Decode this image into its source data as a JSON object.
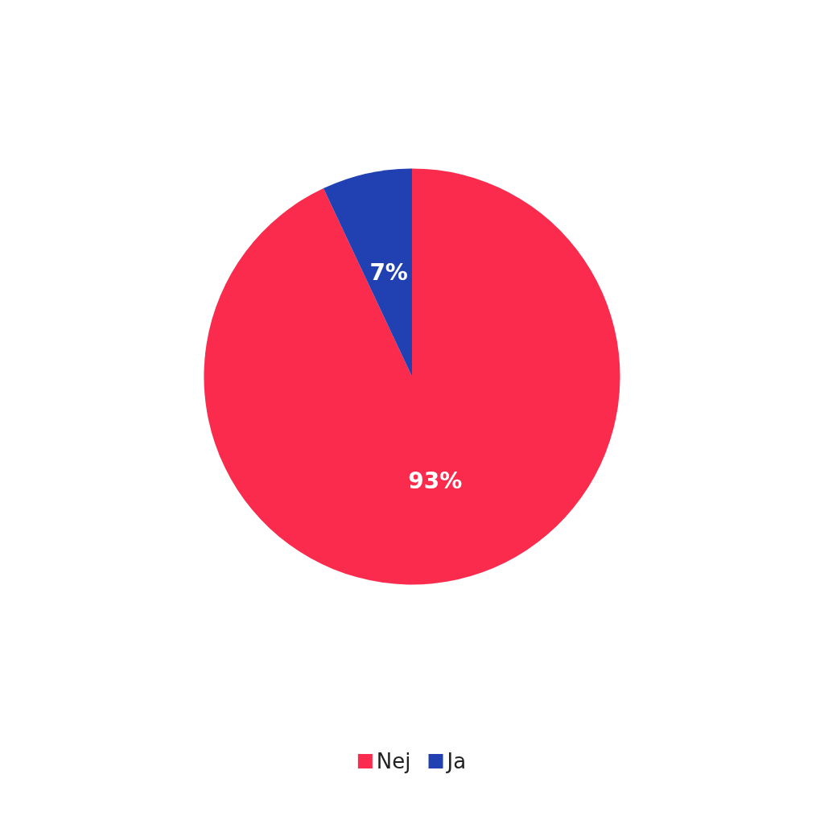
{
  "chart_data": {
    "type": "pie",
    "categories": [
      "Nej",
      "Ja"
    ],
    "values": [
      93,
      7
    ],
    "colors": [
      "#fa2b4c",
      "#2141b3"
    ],
    "value_labels": [
      "93%",
      "7%"
    ],
    "legend": "bottom"
  }
}
